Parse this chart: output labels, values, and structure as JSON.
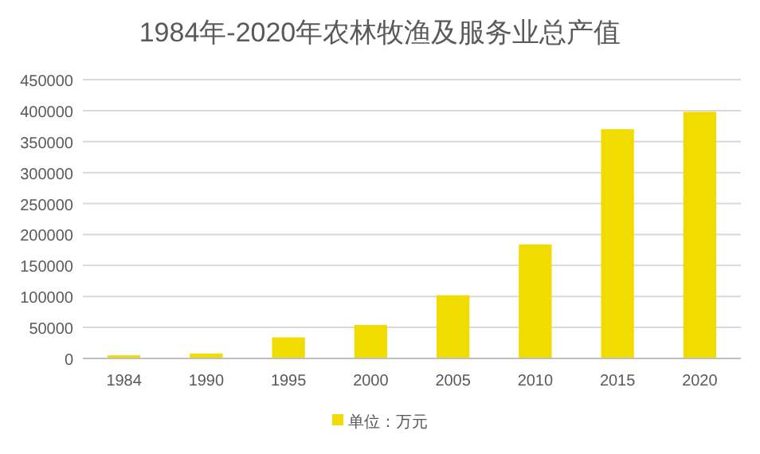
{
  "chart_data": {
    "type": "bar",
    "title": "1984年-2020年农林牧渔及服务业总产值",
    "categories": [
      "1984",
      "1990",
      "1995",
      "2000",
      "2005",
      "2010",
      "2015",
      "2020"
    ],
    "series": [
      {
        "name": "单位：万元",
        "color": "#f0dc00",
        "values": [
          5000,
          8000,
          34000,
          54000,
          102000,
          184000,
          370000,
          398000
        ]
      }
    ],
    "ylim": [
      0,
      450000
    ],
    "yticks": [
      0,
      50000,
      100000,
      150000,
      200000,
      250000,
      300000,
      350000,
      400000,
      450000
    ],
    "grid": "y",
    "legend": "bottom"
  }
}
